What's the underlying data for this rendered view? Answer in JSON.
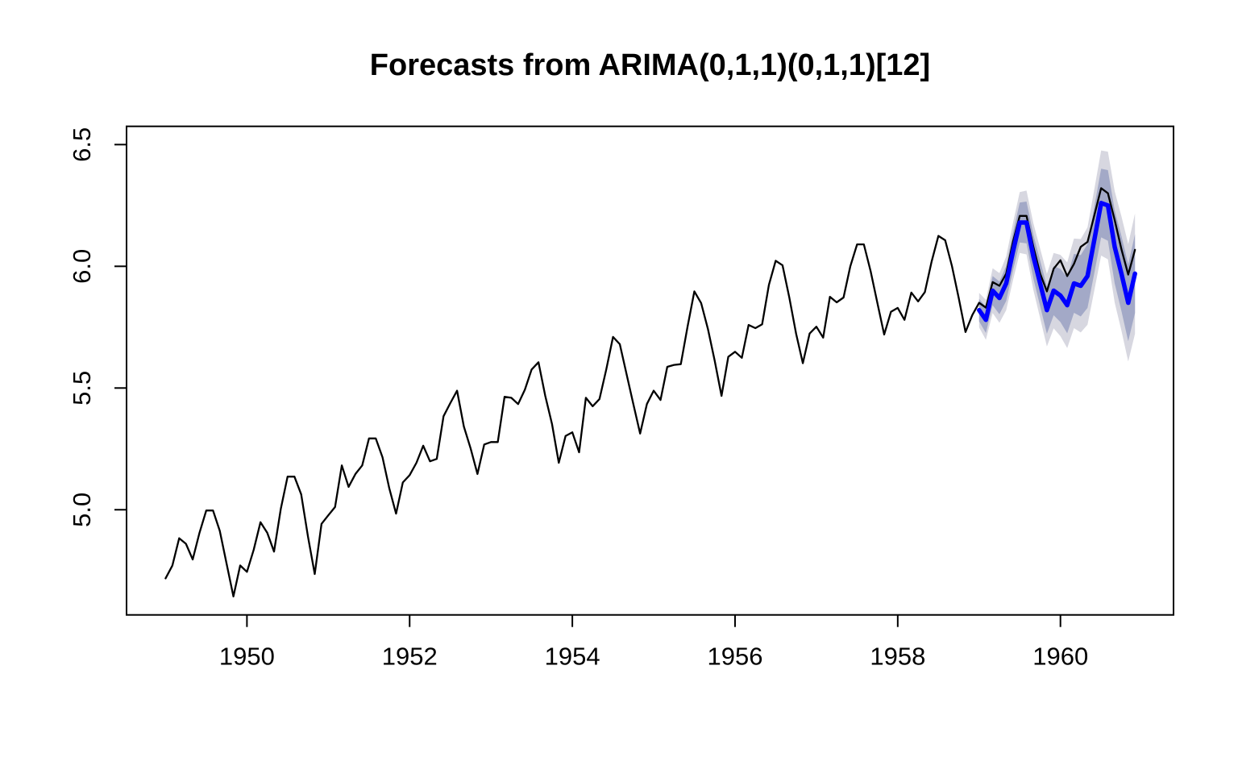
{
  "title": "Forecasts from ARIMA(0,1,1)(0,1,1)[12]",
  "chart_data": {
    "type": "line",
    "title": "Forecasts from ARIMA(0,1,1)(0,1,1)[12]",
    "xlabel": "",
    "ylabel": "",
    "grid": false,
    "legend_position": "none",
    "x_axis": {
      "tick_labels": [
        "1950",
        "1952",
        "1954",
        "1956",
        "1958",
        "1960"
      ],
      "tick_values": [
        1950,
        1952,
        1954,
        1956,
        1958,
        1960
      ],
      "lim": [
        1948.52,
        1961.39
      ]
    },
    "y_axis": {
      "tick_labels": [
        "5.0",
        "5.5",
        "6.0",
        "6.5"
      ],
      "tick_values": [
        5.0,
        5.5,
        6.0,
        6.5
      ],
      "lim": [
        4.568,
        6.575
      ]
    },
    "colors": {
      "observed": "#000000",
      "forecast": "#0000FF",
      "band80": "#A3A9C7",
      "band95": "#D7D7E0"
    },
    "series": [
      {
        "name": "observed",
        "color": "#000000",
        "start": 1949.0,
        "step_years": 0.0833333,
        "values": [
          4.718,
          4.771,
          4.883,
          4.86,
          4.796,
          4.905,
          4.997,
          4.997,
          4.913,
          4.779,
          4.644,
          4.771,
          4.745,
          4.836,
          4.949,
          4.905,
          4.828,
          5.004,
          5.136,
          5.136,
          5.063,
          4.89,
          4.736,
          4.942,
          4.977,
          5.011,
          5.182,
          5.094,
          5.147,
          5.182,
          5.293,
          5.293,
          5.215,
          5.088,
          4.984,
          5.112,
          5.142,
          5.193,
          5.263,
          5.199,
          5.209,
          5.384,
          5.438,
          5.489,
          5.342,
          5.252,
          5.147,
          5.268,
          5.278,
          5.278,
          5.464,
          5.46,
          5.434,
          5.493,
          5.576,
          5.606,
          5.468,
          5.352,
          5.193,
          5.303,
          5.318,
          5.236,
          5.46,
          5.425,
          5.455,
          5.576,
          5.71,
          5.68,
          5.557,
          5.434,
          5.313,
          5.434,
          5.489,
          5.451,
          5.587,
          5.595,
          5.598,
          5.753,
          5.897,
          5.849,
          5.743,
          5.613,
          5.468,
          5.628,
          5.649,
          5.624,
          5.759,
          5.746,
          5.762,
          5.924,
          6.023,
          6.004,
          5.872,
          5.724,
          5.602,
          5.724,
          5.752,
          5.707,
          5.875,
          5.852,
          5.872,
          6.0,
          6.09,
          6.09,
          5.98,
          5.849,
          5.72,
          5.813,
          5.829,
          5.78,
          5.892,
          5.856,
          5.894,
          6.02,
          6.125,
          6.107,
          6.001,
          5.87,
          5.73,
          5.8,
          5.85,
          5.83,
          5.935,
          5.92,
          5.97,
          6.1,
          6.207,
          6.207,
          6.08,
          5.97,
          5.897,
          5.99,
          6.025,
          5.96,
          6.01,
          6.08,
          6.1,
          6.21,
          6.321,
          6.3,
          6.19,
          6.07,
          5.966,
          6.068
        ]
      },
      {
        "name": "forecast-mean",
        "color": "#0000FF",
        "start": 1959.0,
        "step_years": 0.0833333,
        "values": [
          5.82,
          5.78,
          5.9,
          5.87,
          5.93,
          6.06,
          6.18,
          6.18,
          6.04,
          5.93,
          5.82,
          5.9,
          5.88,
          5.84,
          5.93,
          5.92,
          5.96,
          6.11,
          6.26,
          6.25,
          6.08,
          5.97,
          5.85,
          5.97
        ]
      }
    ],
    "intervals": [
      {
        "level": 95,
        "color": "#D7D7E0",
        "start": 1959.0,
        "step_years": 0.0833333,
        "upper": [
          5.891,
          5.862,
          5.992,
          5.972,
          6.04,
          6.178,
          6.305,
          6.311,
          6.177,
          6.073,
          5.969,
          6.055,
          6.047,
          6.016,
          6.114,
          6.112,
          6.16,
          6.318,
          6.476,
          6.471,
          6.309,
          6.205,
          6.091,
          6.217
        ],
        "lower": [
          5.749,
          5.698,
          5.808,
          5.768,
          5.82,
          5.942,
          6.055,
          6.049,
          5.903,
          5.787,
          5.671,
          5.745,
          5.713,
          5.664,
          5.746,
          5.728,
          5.76,
          5.902,
          6.044,
          6.029,
          5.851,
          5.735,
          5.609,
          5.723
        ]
      },
      {
        "level": 80,
        "color": "#A3A9C7",
        "start": 1959.0,
        "step_years": 0.0833333,
        "upper": [
          5.866,
          5.834,
          5.96,
          5.937,
          6.002,
          6.137,
          6.262,
          6.266,
          6.13,
          6.024,
          5.917,
          6.001,
          5.989,
          5.955,
          6.051,
          6.046,
          6.091,
          6.246,
          6.401,
          6.395,
          6.23,
          6.124,
          6.008,
          6.132
        ],
        "lower": [
          5.774,
          5.726,
          5.84,
          5.803,
          5.858,
          5.983,
          6.098,
          6.094,
          5.95,
          5.836,
          5.723,
          5.799,
          5.771,
          5.725,
          5.809,
          5.794,
          5.829,
          5.974,
          6.119,
          6.105,
          5.93,
          5.816,
          5.692,
          5.808
        ]
      }
    ]
  }
}
